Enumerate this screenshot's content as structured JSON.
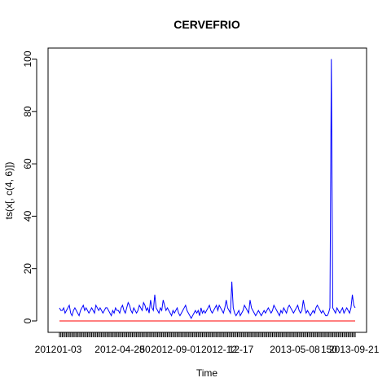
{
  "chart_data": {
    "type": "line",
    "title": "CERVEFRIO",
    "xlabel": "Time",
    "ylabel": "ts(x[, c(4, 6)])",
    "x_tick_labels": [
      "2012-01-03",
      "2012-04-28",
      "2012-09-01",
      "2012-12-17",
      "2013-05-08",
      "2013-09-21"
    ],
    "x_tick_labels_rendered": [
      "2012",
      "01-03",
      "2012-04-28",
      "50",
      "2012-09-01",
      "2012-12",
      "12-17",
      "2013-05-08",
      "150",
      "2013-09-21"
    ],
    "y_ticks": [
      0,
      20,
      40,
      60,
      80,
      100
    ],
    "ylim": [
      0,
      100
    ],
    "grid": false,
    "series": [
      {
        "color": "#0000ff",
        "values": [
          5,
          4,
          4,
          5,
          3,
          4,
          5,
          6,
          3,
          2,
          4,
          5,
          4,
          3,
          2,
          4,
          5,
          6,
          4,
          5,
          4,
          3,
          4,
          5,
          4,
          3,
          6,
          5,
          4,
          5,
          4,
          3,
          4,
          5,
          5,
          4,
          3,
          2,
          4,
          3,
          5,
          4,
          4,
          3,
          5,
          6,
          4,
          3,
          5,
          7,
          6,
          4,
          3,
          5,
          4,
          3,
          4,
          6,
          5,
          4,
          7,
          6,
          4,
          5,
          3,
          8,
          5,
          4,
          10,
          5,
          4,
          3,
          5,
          4,
          8,
          6,
          4,
          5,
          4,
          3,
          2,
          4,
          3,
          4,
          5,
          3,
          2,
          3,
          4,
          5,
          6,
          4,
          3,
          2,
          1,
          2,
          3,
          4,
          3,
          4,
          2,
          5,
          3,
          4,
          3,
          4,
          5,
          6,
          4,
          3,
          4,
          5,
          6,
          4,
          6,
          5,
          4,
          3,
          5,
          8,
          5,
          4,
          3,
          15,
          5,
          3,
          2,
          3,
          4,
          2,
          3,
          4,
          6,
          5,
          4,
          3,
          8,
          5,
          4,
          3,
          2,
          3,
          4,
          3,
          2,
          3,
          4,
          3,
          4,
          5,
          4,
          3,
          4,
          6,
          5,
          4,
          3,
          2,
          4,
          3,
          5,
          4,
          3,
          5,
          6,
          5,
          4,
          3,
          4,
          5,
          6,
          4,
          3,
          4,
          8,
          5,
          3,
          4,
          3,
          2,
          3,
          4,
          3,
          5,
          6,
          5,
          4,
          3,
          4,
          3,
          2,
          2,
          3,
          5,
          100,
          5,
          4,
          3,
          5,
          4,
          3,
          4,
          5,
          3,
          4,
          5,
          4,
          3,
          5,
          10,
          6,
          5
        ]
      },
      {
        "color": "#ff0000",
        "values_constant": 0
      }
    ]
  }
}
